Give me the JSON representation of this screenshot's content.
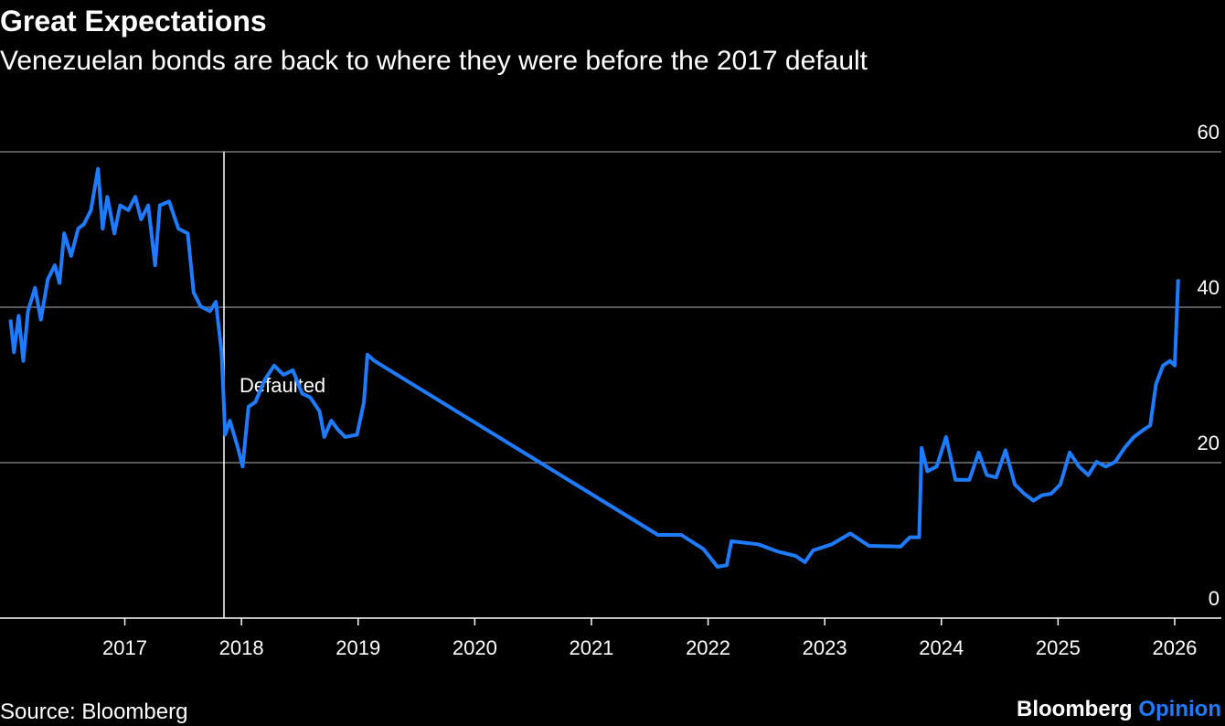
{
  "chart_data": {
    "type": "line",
    "title": "Great Expectations",
    "subtitle": "Venezuelan bonds are back to where they were before the 2017 default",
    "source": "Source: Bloomberg",
    "brand": {
      "name": "Bloomberg",
      "suffix": "Opinion"
    },
    "annotation": {
      "x": 2017.85,
      "label": "Defaulted"
    },
    "xlim": [
      2015.93,
      2026.4
    ],
    "ylim": [
      0,
      60
    ],
    "xticks": [
      2017,
      2018,
      2019,
      2020,
      2021,
      2022,
      2023,
      2024,
      2025,
      2026
    ],
    "yticks": [
      0,
      20,
      40,
      60
    ],
    "grid": true,
    "series": [
      {
        "color": "#1f7bff",
        "x": [
          2016.02,
          2016.05,
          2016.09,
          2016.13,
          2016.17,
          2016.23,
          2016.28,
          2016.34,
          2016.4,
          2016.44,
          2016.48,
          2016.54,
          2016.6,
          2016.65,
          2016.71,
          2016.77,
          2016.81,
          2016.85,
          2016.91,
          2016.96,
          2017.03,
          2017.09,
          2017.14,
          2017.2,
          2017.26,
          2017.3,
          2017.38,
          2017.46,
          2017.54,
          2017.59,
          2017.65,
          2017.73,
          2017.78,
          2017.83,
          2017.86,
          2017.9,
          2017.97,
          2018.01,
          2018.06,
          2018.12,
          2018.2,
          2018.28,
          2018.36,
          2018.44,
          2018.52,
          2018.59,
          2018.67,
          2018.71,
          2018.77,
          2018.83,
          2018.89,
          2018.99,
          2019.05,
          2019.08,
          2019.14,
          2021.57,
          2021.77,
          2021.96,
          2022.08,
          2022.16,
          2022.2,
          2022.43,
          2022.59,
          2022.75,
          2022.83,
          2022.9,
          2023.06,
          2023.22,
          2023.38,
          2023.65,
          2023.73,
          2023.81,
          2023.83,
          2023.88,
          2023.96,
          2024.04,
          2024.12,
          2024.24,
          2024.32,
          2024.39,
          2024.47,
          2024.55,
          2024.63,
          2024.71,
          2024.79,
          2024.86,
          2024.94,
          2025.02,
          2025.1,
          2025.18,
          2025.26,
          2025.33,
          2025.41,
          2025.49,
          2025.57,
          2025.65,
          2025.73,
          2025.79,
          2025.84,
          2025.9,
          2025.96,
          2026.0,
          2026.03
        ],
        "values": [
          38.4,
          34.2,
          38.9,
          33.1,
          39.5,
          42.5,
          38.4,
          43.6,
          45.4,
          43.1,
          49.5,
          46.6,
          50.1,
          50.7,
          52.5,
          57.8,
          50.1,
          54.2,
          49.5,
          53.1,
          52.5,
          54.2,
          51.3,
          53.1,
          45.4,
          53.1,
          53.6,
          50.1,
          49.5,
          41.9,
          40.1,
          39.5,
          40.7,
          34.2,
          23.6,
          25.4,
          21.9,
          19.5,
          27.2,
          27.8,
          30.7,
          32.5,
          31.3,
          31.9,
          28.9,
          28.4,
          26.6,
          23.3,
          25.4,
          24.2,
          23.3,
          23.6,
          27.8,
          33.9,
          33.1,
          10.7,
          10.7,
          8.9,
          6.6,
          6.8,
          9.9,
          9.5,
          8.6,
          8.0,
          7.2,
          8.7,
          9.5,
          10.9,
          9.3,
          9.2,
          10.4,
          10.4,
          21.9,
          18.9,
          19.5,
          23.3,
          17.8,
          17.8,
          21.3,
          18.4,
          18.1,
          21.6,
          17.2,
          16.0,
          15.1,
          15.8,
          16.0,
          17.2,
          21.3,
          19.5,
          18.4,
          20.1,
          19.5,
          20.1,
          21.9,
          23.3,
          24.2,
          24.8,
          30.1,
          32.5,
          33.1,
          32.5,
          43.6
        ]
      }
    ]
  }
}
